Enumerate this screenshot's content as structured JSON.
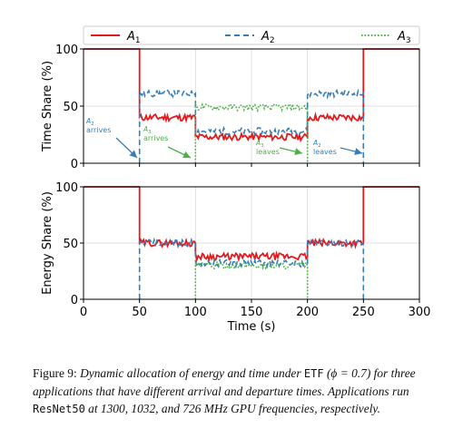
{
  "chart_data": [
    {
      "type": "line",
      "ylabel": "Time Share (%)",
      "xlim": [
        0,
        300
      ],
      "ylim": [
        0,
        100
      ],
      "yticks": [
        0,
        50,
        100
      ],
      "grid": true,
      "legend": {
        "placement": "top",
        "entries": [
          {
            "label": "A",
            "sub": "1",
            "color": "#e41a1c",
            "style": "solid"
          },
          {
            "label": "A",
            "sub": "2",
            "color": "#377eb8",
            "style": "dashed"
          },
          {
            "label": "A",
            "sub": "3",
            "color": "#4daf4a",
            "style": "dotted"
          }
        ]
      },
      "series": [
        {
          "name": "A1",
          "x": [
            0,
            50,
            50,
            100,
            100,
            200,
            200,
            250,
            250,
            300
          ],
          "y": [
            100,
            100,
            40,
            40,
            23,
            23,
            40,
            40,
            100,
            100
          ]
        },
        {
          "name": "A2",
          "x": [
            50,
            50,
            100,
            100,
            200,
            200,
            250,
            250
          ],
          "y": [
            0,
            61,
            61,
            28,
            28,
            61,
            61,
            0
          ]
        },
        {
          "name": "A3",
          "x": [
            100,
            100,
            200,
            200
          ],
          "y": [
            0,
            49,
            49,
            0
          ]
        }
      ],
      "annotations": [
        {
          "text": [
            "A",
            "2",
            "arrives"
          ],
          "x": 50,
          "color": "#377eb8"
        },
        {
          "text": [
            "A",
            "3",
            "arrives"
          ],
          "x": 100,
          "color": "#4daf4a"
        },
        {
          "text": [
            "A",
            "3",
            "leaves"
          ],
          "x": 200,
          "color": "#4daf4a"
        },
        {
          "text": [
            "A",
            "2",
            "leaves"
          ],
          "x": 250,
          "color": "#377eb8"
        }
      ]
    },
    {
      "type": "line",
      "xlabel": "Time (s)",
      "ylabel": "Energy Share (%)",
      "xlim": [
        0,
        300
      ],
      "ylim": [
        0,
        100
      ],
      "xticks": [
        0,
        50,
        100,
        150,
        200,
        250,
        300
      ],
      "yticks": [
        0,
        50,
        100
      ],
      "grid": true,
      "series": [
        {
          "name": "A1",
          "x": [
            0,
            50,
            50,
            100,
            100,
            200,
            200,
            250,
            250,
            300
          ],
          "y": [
            100,
            100,
            50,
            50,
            38,
            38,
            50,
            50,
            100,
            100
          ]
        },
        {
          "name": "A2",
          "x": [
            50,
            50,
            100,
            100,
            200,
            200,
            250,
            250
          ],
          "y": [
            0,
            50,
            50,
            32,
            32,
            50,
            50,
            0
          ]
        },
        {
          "name": "A3",
          "x": [
            100,
            100,
            200,
            200
          ],
          "y": [
            0,
            30,
            30,
            0
          ]
        }
      ]
    }
  ],
  "caption": {
    "label": "Figure 9:",
    "part1": "Dynamic allocation of energy and time under",
    "code1": "ETF",
    "part2": "(ϕ = 0.7) for three applications that have different arrival and departure times. Applications run",
    "code2": "ResNet50",
    "part3": "at 1300, 1032, and 726 MHz GPU frequencies, respectively."
  }
}
